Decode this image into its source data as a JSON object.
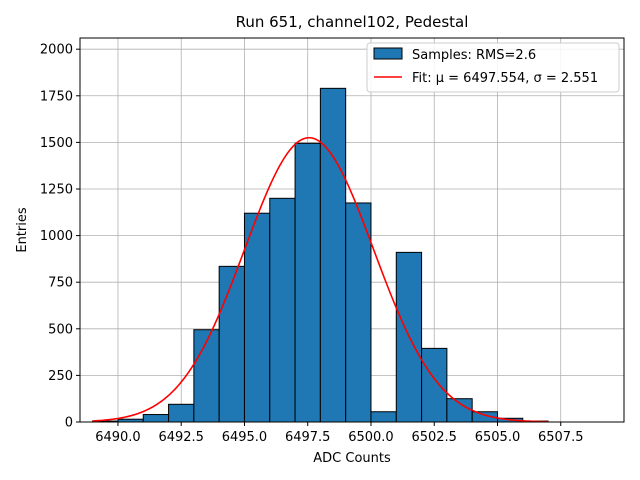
{
  "chart_data": {
    "type": "bar",
    "title": "Run 651, channel102, Pedestal",
    "xlabel": "ADC Counts",
    "ylabel": "Entries",
    "xlim": [
      6488.5,
      6510.0
    ],
    "ylim": [
      0,
      2060
    ],
    "xticks": [
      6490.0,
      6492.5,
      6495.0,
      6497.5,
      6500.0,
      6502.5,
      6505.0,
      6507.5
    ],
    "xtick_labels": [
      "6490.0",
      "6492.5",
      "6495.0",
      "6497.5",
      "6500.0",
      "6502.5",
      "6505.0",
      "6507.5"
    ],
    "yticks": [
      0,
      250,
      500,
      750,
      1000,
      1250,
      1500,
      1750,
      2000
    ],
    "ytick_labels": [
      "0",
      "250",
      "500",
      "750",
      "1000",
      "1250",
      "1500",
      "1750",
      "2000"
    ],
    "grid": true,
    "legend_position": "top-right",
    "bar_color": "#1f77b4",
    "fit_color": "#ff0000",
    "histogram": {
      "name": "Samples: RMS=2.6",
      "bin_edges": [
        6489,
        6490,
        6491,
        6492,
        6493,
        6494,
        6495,
        6496,
        6497,
        6498,
        6499,
        6500,
        6501,
        6502,
        6503,
        6504,
        6505,
        6506,
        6507,
        6508,
        6509
      ],
      "values": [
        5,
        15,
        40,
        95,
        495,
        835,
        1120,
        1200,
        1495,
        1790,
        1175,
        55,
        910,
        395,
        125,
        55,
        20,
        5,
        0,
        0
      ]
    },
    "fit": {
      "name": "Fit: μ = 6497.554, σ = 2.551",
      "mu": 6497.554,
      "sigma": 2.551,
      "amplitude": 1525,
      "x_range": [
        6489,
        6507
      ]
    }
  }
}
